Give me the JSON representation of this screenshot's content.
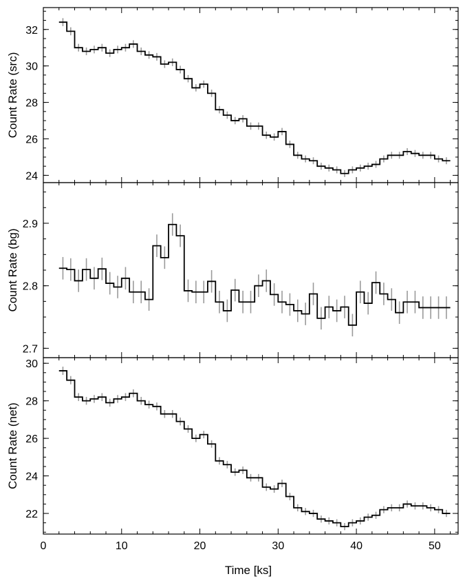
{
  "chart_data": {
    "type": "line",
    "style": "step histogram with vertical error bars (grey)",
    "xlabel": "Time [ks]",
    "xlim": [
      0,
      53
    ],
    "xticks": [
      0,
      10,
      20,
      30,
      40,
      50
    ],
    "x": [
      2.5,
      3.5,
      4.5,
      5.5,
      6.5,
      7.5,
      8.5,
      9.5,
      10.5,
      11.5,
      12.5,
      13.5,
      14.5,
      15.5,
      16.5,
      17.5,
      18.5,
      19.5,
      20.5,
      21.5,
      22.5,
      23.5,
      24.5,
      25.5,
      26.5,
      27.5,
      28.5,
      29.5,
      30.5,
      31.5,
      32.5,
      33.5,
      34.5,
      35.5,
      36.5,
      37.5,
      38.5,
      39.5,
      40.5,
      41.5,
      42.5,
      43.5,
      44.5,
      45.5,
      46.5,
      47.5,
      48.5,
      49.5,
      50.5,
      51.5
    ],
    "panels": [
      {
        "ylabel": "Count Rate (src)",
        "ylim": [
          23.6,
          33.2
        ],
        "yticks": [
          24,
          26,
          28,
          30,
          32
        ],
        "ytick_labels": [
          "24",
          "26",
          "28",
          "30",
          "32"
        ],
        "values": [
          32.4,
          31.9,
          31.0,
          30.8,
          30.9,
          31.0,
          30.7,
          30.9,
          31.0,
          31.2,
          30.8,
          30.6,
          30.5,
          30.1,
          30.2,
          29.8,
          29.3,
          28.8,
          29.0,
          28.5,
          27.6,
          27.3,
          27.0,
          27.1,
          26.7,
          26.7,
          26.2,
          26.1,
          26.4,
          25.7,
          25.1,
          24.9,
          24.8,
          24.5,
          24.4,
          24.3,
          24.1,
          24.3,
          24.4,
          24.5,
          24.6,
          24.9,
          25.1,
          25.1,
          25.3,
          25.2,
          25.1,
          25.1,
          24.9,
          24.8
        ],
        "errors": [
          0.22,
          0.22,
          0.21,
          0.21,
          0.21,
          0.21,
          0.21,
          0.21,
          0.21,
          0.21,
          0.21,
          0.21,
          0.21,
          0.21,
          0.21,
          0.21,
          0.2,
          0.2,
          0.2,
          0.2,
          0.2,
          0.2,
          0.2,
          0.2,
          0.2,
          0.2,
          0.2,
          0.2,
          0.2,
          0.2,
          0.19,
          0.19,
          0.19,
          0.19,
          0.19,
          0.19,
          0.19,
          0.19,
          0.19,
          0.19,
          0.19,
          0.19,
          0.19,
          0.19,
          0.19,
          0.19,
          0.19,
          0.19,
          0.19,
          0.19
        ]
      },
      {
        "ylabel": "Count Rate (bg)",
        "ylim": [
          2.685,
          2.965
        ],
        "yticks": [
          2.7,
          2.8,
          2.9
        ],
        "ytick_labels": [
          "2.7",
          "2.8",
          "2.9"
        ],
        "values": [
          2.828,
          2.826,
          2.808,
          2.826,
          2.812,
          2.827,
          2.804,
          2.798,
          2.812,
          2.79,
          2.79,
          2.778,
          2.864,
          2.845,
          2.898,
          2.88,
          2.792,
          2.79,
          2.79,
          2.807,
          2.774,
          2.76,
          2.793,
          2.774,
          2.774,
          2.8,
          2.808,
          2.786,
          2.774,
          2.77,
          2.76,
          2.755,
          2.787,
          2.748,
          2.766,
          2.76,
          2.766,
          2.737,
          2.79,
          2.772,
          2.805,
          2.787,
          2.778,
          2.757,
          2.774,
          2.774,
          2.765,
          2.765,
          2.765,
          2.765
        ],
        "errors": [
          0.018,
          0.018,
          0.018,
          0.018,
          0.018,
          0.018,
          0.018,
          0.018,
          0.018,
          0.018,
          0.018,
          0.018,
          0.018,
          0.018,
          0.018,
          0.018,
          0.018,
          0.018,
          0.018,
          0.018,
          0.018,
          0.018,
          0.018,
          0.018,
          0.018,
          0.018,
          0.018,
          0.018,
          0.018,
          0.018,
          0.018,
          0.018,
          0.018,
          0.018,
          0.018,
          0.018,
          0.018,
          0.018,
          0.018,
          0.018,
          0.018,
          0.018,
          0.018,
          0.018,
          0.018,
          0.018,
          0.018,
          0.018,
          0.018,
          0.018
        ]
      },
      {
        "ylabel": "Count Rate (net)",
        "ylim": [
          20.9,
          30.3
        ],
        "yticks": [
          22,
          24,
          26,
          28,
          30
        ],
        "ytick_labels": [
          "22",
          "24",
          "26",
          "28",
          "30"
        ],
        "values": [
          29.6,
          29.1,
          28.2,
          28.0,
          28.1,
          28.2,
          27.9,
          28.1,
          28.2,
          28.4,
          28.0,
          27.8,
          27.7,
          27.3,
          27.3,
          26.9,
          26.5,
          26.0,
          26.2,
          25.7,
          24.8,
          24.6,
          24.2,
          24.3,
          23.9,
          23.9,
          23.4,
          23.3,
          23.6,
          22.9,
          22.3,
          22.1,
          22.0,
          21.7,
          21.6,
          21.5,
          21.3,
          21.5,
          21.6,
          21.8,
          21.9,
          22.2,
          22.3,
          22.3,
          22.5,
          22.4,
          22.4,
          22.3,
          22.2,
          22.0
        ],
        "errors": [
          0.22,
          0.22,
          0.21,
          0.21,
          0.21,
          0.21,
          0.21,
          0.21,
          0.21,
          0.21,
          0.21,
          0.21,
          0.21,
          0.21,
          0.21,
          0.21,
          0.2,
          0.2,
          0.2,
          0.2,
          0.2,
          0.2,
          0.2,
          0.2,
          0.2,
          0.2,
          0.2,
          0.2,
          0.2,
          0.2,
          0.19,
          0.19,
          0.19,
          0.19,
          0.19,
          0.19,
          0.19,
          0.19,
          0.19,
          0.19,
          0.19,
          0.19,
          0.19,
          0.19,
          0.19,
          0.19,
          0.19,
          0.19,
          0.19,
          0.19
        ]
      }
    ]
  }
}
